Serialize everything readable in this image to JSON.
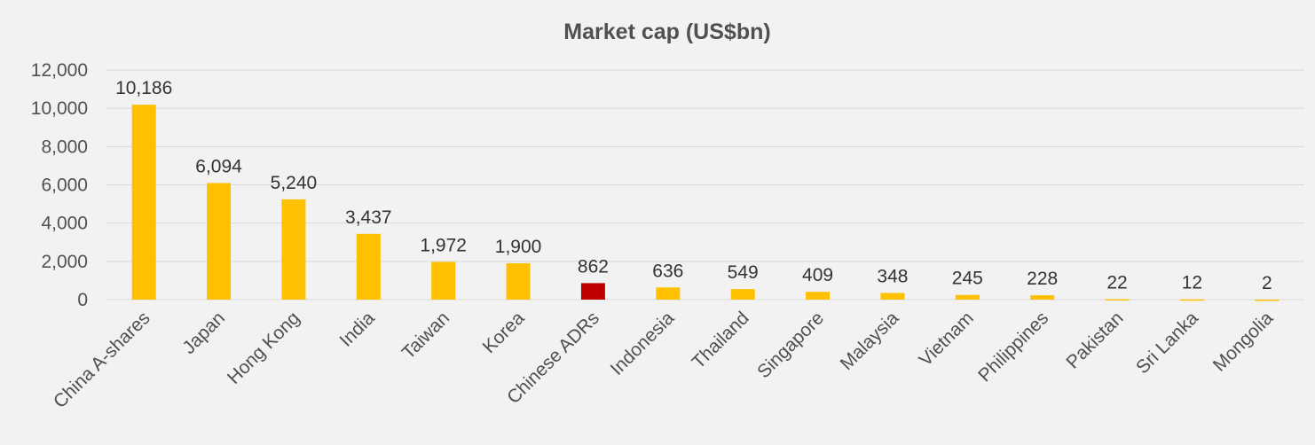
{
  "chart_data": {
    "type": "bar",
    "title": "Market cap (US$bn)",
    "xlabel": "",
    "ylabel": "",
    "categories": [
      "China A-shares",
      "Japan",
      "Hong Kong",
      "India",
      "Taiwan",
      "Korea",
      "Chinese ADRs",
      "Indonesia",
      "Thailand",
      "Singapore",
      "Malaysia",
      "Vietnam",
      "Philippines",
      "Pakistan",
      "Sri Lanka",
      "Mongolia"
    ],
    "values": [
      10186,
      6094,
      5240,
      3437,
      1972,
      1900,
      862,
      636,
      549,
      409,
      348,
      245,
      228,
      22,
      12,
      2
    ],
    "data_labels": [
      "10,186",
      "6,094",
      "5,240",
      "3,437",
      "1,972",
      "1,900",
      "862",
      "636",
      "549",
      "409",
      "348",
      "245",
      "228",
      "22",
      "12",
      "2"
    ],
    "ylim": [
      0,
      12000
    ],
    "yticks": [
      0,
      2000,
      4000,
      6000,
      8000,
      10000,
      12000
    ],
    "ytick_labels": [
      "0",
      "2,000",
      "4,000",
      "6,000",
      "8,000",
      "10,000",
      "12,000"
    ],
    "grid": true,
    "legend": "none",
    "colors": {
      "bar": "#ffc000",
      "highlight": "#c00000",
      "highlight_category": "Chinese ADRs",
      "grid": "#d9d9d9",
      "background": "#f2f2f2"
    }
  }
}
